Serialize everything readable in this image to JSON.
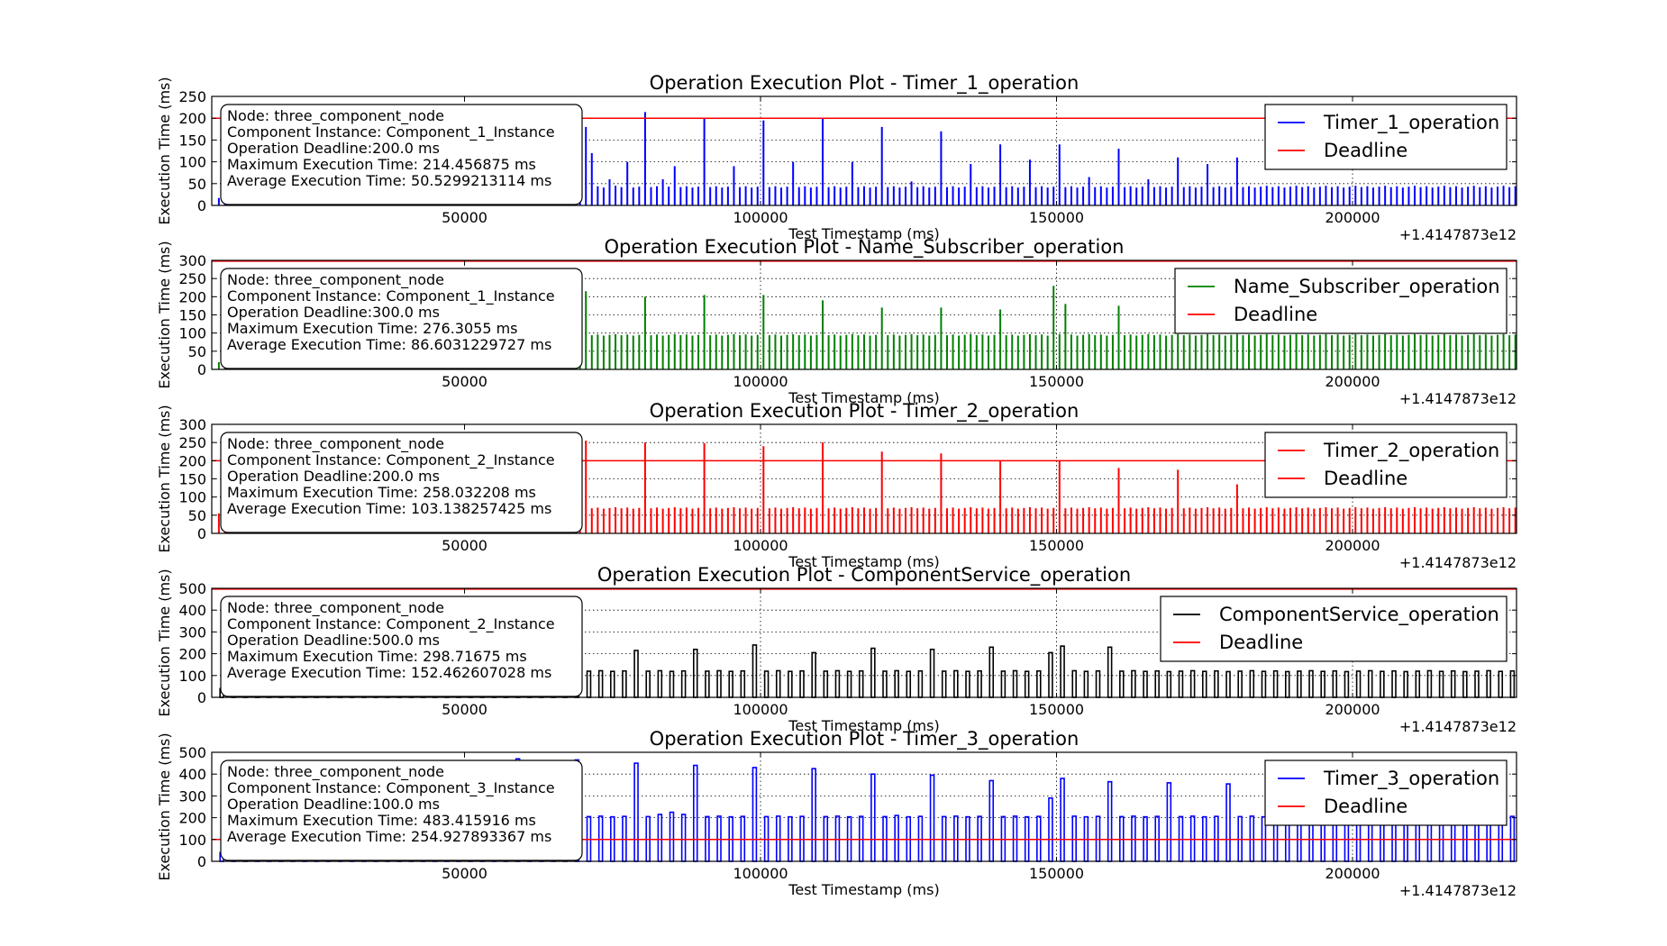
{
  "figure": {
    "x_axis_label": "Test Timestamp (ms)",
    "y_axis_label": "Execution Time (ms)",
    "offset_text": "+1.4147873e12"
  },
  "chart_data": [
    {
      "type": "bar",
      "title": "Operation Execution Plot - Timer_1_operation",
      "xlabel": "Test Timestamp (ms)",
      "ylabel": "Execution Time (ms)",
      "x_offset": "+1.4147873e12",
      "xlim": [
        7300,
        227700
      ],
      "ylim": [
        0,
        250
      ],
      "xticks": [
        50000,
        100000,
        150000,
        200000
      ],
      "yticks": [
        0,
        50,
        100,
        150,
        200,
        250
      ],
      "color": "#0000ff",
      "style": "spikes",
      "period": 1000,
      "baseline": 43,
      "base_below": 17,
      "baseline_start": 68000,
      "deadline": 200,
      "peaks": [
        [
          70500,
          180
        ],
        [
          71500,
          120
        ],
        [
          75000,
          60
        ],
        [
          77500,
          100
        ],
        [
          80500,
          214
        ],
        [
          84000,
          60
        ],
        [
          85500,
          90
        ],
        [
          90500,
          200
        ],
        [
          95500,
          90
        ],
        [
          100500,
          195
        ],
        [
          105500,
          100
        ],
        [
          110500,
          200
        ],
        [
          115500,
          100
        ],
        [
          120500,
          180
        ],
        [
          125500,
          55
        ],
        [
          130500,
          170
        ],
        [
          135500,
          95
        ],
        [
          140500,
          140
        ],
        [
          145500,
          105
        ],
        [
          150500,
          140
        ],
        [
          155500,
          65
        ],
        [
          160500,
          130
        ],
        [
          165500,
          60
        ],
        [
          170500,
          110
        ],
        [
          175500,
          95
        ],
        [
          180500,
          110
        ]
      ],
      "legend": [
        {
          "label": "Timer_1_operation",
          "color": "#0000ff"
        },
        {
          "label": "Deadline",
          "color": "#ff0000"
        }
      ],
      "info": [
        "Node: three_component_node",
        "Component Instance: Component_1_Instance",
        "Operation Deadline:200.0 ms",
        "Maximum Execution Time: 214.456875 ms",
        "Average Execution Time: 50.5299213114 ms"
      ]
    },
    {
      "type": "bar",
      "title": "Operation Execution Plot - Name_Subscriber_operation",
      "xlabel": "Test Timestamp (ms)",
      "ylabel": "Execution Time (ms)",
      "x_offset": "+1.4147873e12",
      "xlim": [
        7300,
        227700
      ],
      "ylim": [
        0,
        300
      ],
      "xticks": [
        50000,
        100000,
        150000,
        200000
      ],
      "yticks": [
        0,
        50,
        100,
        150,
        200,
        250,
        300
      ],
      "color": "#008000",
      "style": "spikes",
      "period": 1000,
      "baseline": 95,
      "base_below": 20,
      "baseline_start": 68000,
      "deadline": 300,
      "peaks": [
        [
          70500,
          215
        ],
        [
          80500,
          200
        ],
        [
          90500,
          205
        ],
        [
          100500,
          205
        ],
        [
          110500,
          190
        ],
        [
          120500,
          170
        ],
        [
          130500,
          170
        ],
        [
          140500,
          165
        ],
        [
          149500,
          230
        ],
        [
          151500,
          180
        ],
        [
          160500,
          175
        ]
      ],
      "legend": [
        {
          "label": "Name_Subscriber_operation",
          "color": "#008000"
        },
        {
          "label": "Deadline",
          "color": "#ff0000"
        }
      ],
      "info": [
        "Node: three_component_node",
        "Component Instance: Component_1_Instance",
        "Operation Deadline:300.0 ms",
        "Maximum Execution Time: 276.3055 ms",
        "Average Execution Time: 86.6031229727 ms"
      ]
    },
    {
      "type": "bar",
      "title": "Operation Execution Plot - Timer_2_operation",
      "xlabel": "Test Timestamp (ms)",
      "ylabel": "Execution Time (ms)",
      "x_offset": "+1.4147873e12",
      "xlim": [
        7300,
        227700
      ],
      "ylim": [
        0,
        300
      ],
      "xticks": [
        50000,
        100000,
        150000,
        200000
      ],
      "yticks": [
        0,
        50,
        100,
        150,
        200,
        250,
        300
      ],
      "color": "#ff0000",
      "style": "spikes",
      "period": 1000,
      "baseline": 70,
      "base_below": 55,
      "baseline_start": 68000,
      "deadline": 200,
      "peaks": [
        [
          70500,
          255
        ],
        [
          80500,
          250
        ],
        [
          90500,
          248
        ],
        [
          100500,
          240
        ],
        [
          110500,
          250
        ],
        [
          120500,
          225
        ],
        [
          130500,
          220
        ],
        [
          140500,
          200
        ],
        [
          150500,
          200
        ],
        [
          160500,
          180
        ],
        [
          170500,
          175
        ],
        [
          180500,
          135
        ]
      ],
      "legend": [
        {
          "label": "Timer_2_operation",
          "color": "#ff0000"
        },
        {
          "label": "Deadline",
          "color": "#ff0000"
        }
      ],
      "info": [
        "Node: three_component_node",
        "Component Instance: Component_2_Instance",
        "Operation Deadline:200.0 ms",
        "Maximum Execution Time: 258.032208 ms",
        "Average Execution Time: 103.138257425 ms"
      ]
    },
    {
      "type": "bar",
      "title": "Operation Execution Plot - ComponentService_operation",
      "xlabel": "Test Timestamp (ms)",
      "ylabel": "Execution Time (ms)",
      "x_offset": "+1.4147873e12",
      "xlim": [
        7300,
        227700
      ],
      "ylim": [
        0,
        500
      ],
      "xticks": [
        50000,
        100000,
        150000,
        200000
      ],
      "yticks": [
        0,
        100,
        200,
        300,
        400,
        500
      ],
      "color": "#000000",
      "style": "pulses",
      "period": 2000,
      "baseline": 120,
      "base_below": 40,
      "baseline_start": 68000,
      "deadline": 500,
      "peaks": [
        [
          70500,
          225
        ],
        [
          80500,
          215
        ],
        [
          90500,
          220
        ],
        [
          100500,
          240
        ],
        [
          110500,
          205
        ],
        [
          120500,
          225
        ],
        [
          130500,
          220
        ],
        [
          140500,
          230
        ],
        [
          149000,
          205
        ],
        [
          151000,
          235
        ],
        [
          160500,
          230
        ]
      ],
      "legend": [
        {
          "label": "ComponentService_operation",
          "color": "#000000"
        },
        {
          "label": "Deadline",
          "color": "#ff0000"
        }
      ],
      "info": [
        "Node: three_component_node",
        "Component Instance: Component_2_Instance",
        "Operation Deadline:500.0 ms",
        "Maximum Execution Time: 298.71675 ms",
        "Average Execution Time: 152.462607028 ms"
      ]
    },
    {
      "type": "bar",
      "title": "Operation Execution Plot - Timer_3_operation",
      "xlabel": "Test Timestamp (ms)",
      "ylabel": "Execution Time (ms)",
      "x_offset": "+1.4147873e12",
      "xlim": [
        7300,
        227700
      ],
      "ylim": [
        0,
        500
      ],
      "xticks": [
        50000,
        100000,
        150000,
        200000
      ],
      "yticks": [
        0,
        100,
        200,
        300,
        400,
        500
      ],
      "color": "#0000ff",
      "style": "pulses",
      "period": 2000,
      "baseline": 205,
      "base_below": 40,
      "baseline_start": 68000,
      "deadline": 100,
      "peaks": [
        [
          60500,
          470
        ],
        [
          70500,
          465
        ],
        [
          80500,
          450
        ],
        [
          84500,
          215
        ],
        [
          86500,
          225
        ],
        [
          88500,
          215
        ],
        [
          90500,
          440
        ],
        [
          100500,
          430
        ],
        [
          110500,
          425
        ],
        [
          120500,
          400
        ],
        [
          124500,
          210
        ],
        [
          130500,
          395
        ],
        [
          140500,
          370
        ],
        [
          149000,
          290
        ],
        [
          151000,
          380
        ],
        [
          160500,
          365
        ],
        [
          170500,
          360
        ],
        [
          180500,
          355
        ]
      ],
      "legend": [
        {
          "label": "Timer_3_operation",
          "color": "#0000ff"
        },
        {
          "label": "Deadline",
          "color": "#ff0000"
        }
      ],
      "info": [
        "Node: three_component_node",
        "Component Instance: Component_3_Instance",
        "Operation Deadline:100.0 ms",
        "Maximum Execution Time: 483.415916 ms",
        "Average Execution Time: 254.927893367 ms"
      ]
    }
  ]
}
